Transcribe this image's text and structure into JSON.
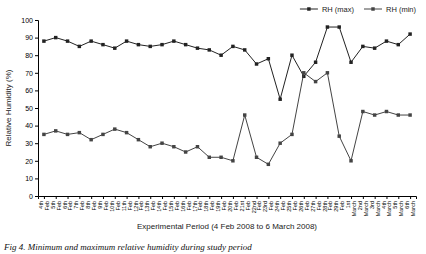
{
  "chart_data": {
    "type": "line",
    "title": "Fig 4. Minimum and maximum relative humidity during study period",
    "x_label": "Experimental Period (4 Feb 2008 to 6 March 2008)",
    "y_label": "Relative Humidity (%)",
    "categories": [
      "4th\nFeb",
      "5th\nFeb",
      "6th\nFeb",
      "7th\nFeb",
      "8th\nFeb",
      "9th\nFeb",
      "10th\nFeb",
      "11th\nFeb",
      "12th\nFeb",
      "13th\nFeb",
      "14th\nFeb",
      "15th\nFeb",
      "16th\nFeb",
      "17th\nFeb",
      "18th\nFeb",
      "19th\nFeb",
      "20th\nFeb",
      "21st\nFeb",
      "22nd\nFeb",
      "23rd\nFeb",
      "24th\nFeb",
      "25th\nFeb",
      "26th\nFeb",
      "27th\nFeb",
      "28th\nFeb",
      "29th\nFeb",
      "1st\nMarch",
      "2nd\nMarch",
      "3rd\nMarch",
      "4th\nMarch",
      "5th\nMarch",
      "6th\nMarch"
    ],
    "series": [
      {
        "name": "RH (max)",
        "color": "#222222",
        "marker": "square",
        "values": [
          88,
          90,
          88,
          85,
          88,
          86,
          84,
          88,
          86,
          85,
          86,
          88,
          86,
          84,
          83,
          80,
          85,
          83,
          75,
          78,
          55,
          80,
          68,
          76,
          96,
          96,
          76,
          85,
          84,
          88,
          86,
          92
        ]
      },
      {
        "name": "RH (min)",
        "color": "#444444",
        "marker": "square",
        "values": [
          35,
          37,
          35,
          36,
          32,
          35,
          38,
          36,
          32,
          28,
          30,
          28,
          25,
          28,
          22,
          22,
          20,
          46,
          22,
          18,
          30,
          35,
          70,
          65,
          70,
          34,
          20,
          48,
          46,
          48,
          46,
          46
        ]
      }
    ],
    "ylim": [
      0,
      100
    ],
    "yticks": [
      0,
      10,
      20,
      30,
      40,
      50,
      60,
      70,
      80,
      90,
      100
    ],
    "grid": false,
    "legend": "top-right"
  }
}
